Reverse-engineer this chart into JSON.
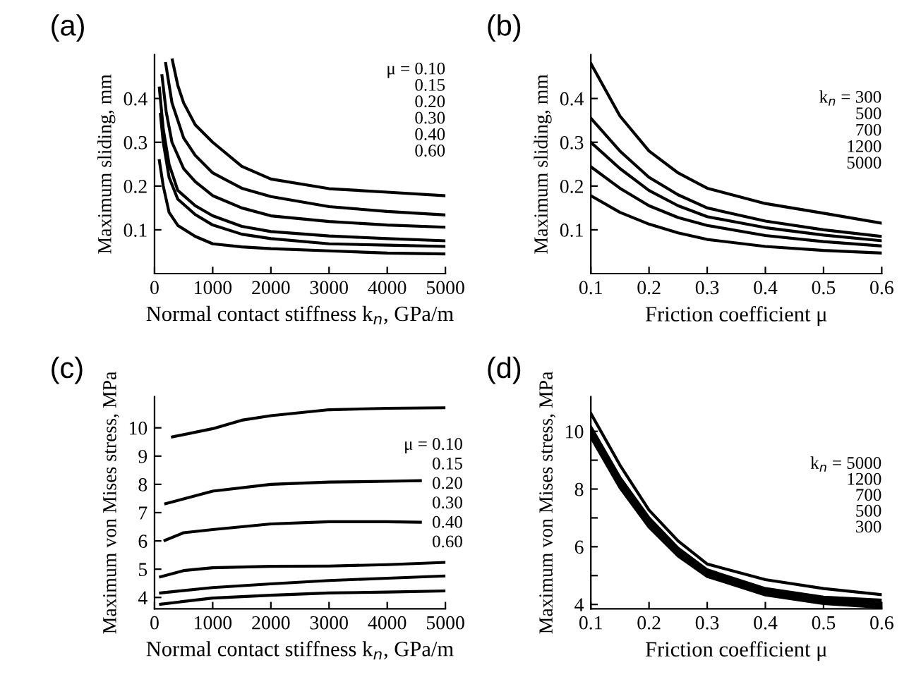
{
  "chart_data": [
    {
      "type": "line",
      "title": "(a)",
      "xlabel": "Normal contact stiffness k$_{n}$, GPa/m",
      "ylabel": "Maximum sliding, mm",
      "xlim": [
        0,
        5000
      ],
      "ylim": [
        0,
        0.5
      ],
      "xticks": [
        0,
        1000,
        2000,
        3000,
        4000,
        5000
      ],
      "yticks": [
        0.1,
        0.2,
        0.3,
        0.4
      ],
      "grid": false,
      "legend": false,
      "annotations": [
        "μ = 0.10",
        "0.15",
        "0.20",
        "0.30",
        "0.40",
        "0.60"
      ],
      "series": [
        {
          "color": "#000000",
          "x": [
            306,
            400,
            500,
            700,
            1000,
            1500,
            2000,
            3000,
            4000,
            5000
          ],
          "values": [
            0.488,
            0.43,
            0.39,
            0.34,
            0.3,
            0.245,
            0.216,
            0.194,
            0.186,
            0.178
          ]
        },
        {
          "color": "#000000",
          "x": [
            192,
            300,
            500,
            700,
            1000,
            1500,
            2000,
            3000,
            4000,
            5000
          ],
          "values": [
            0.48,
            0.39,
            0.31,
            0.27,
            0.23,
            0.195,
            0.176,
            0.153,
            0.142,
            0.134
          ]
        },
        {
          "color": "#000000",
          "x": [
            128,
            200,
            300,
            500,
            700,
            1000,
            1500,
            2000,
            3000,
            4000,
            5000
          ],
          "values": [
            0.452,
            0.37,
            0.3,
            0.24,
            0.21,
            0.178,
            0.15,
            0.132,
            0.119,
            0.111,
            0.106
          ]
        },
        {
          "color": "#000000",
          "x": [
            83,
            150,
            250,
            400,
            700,
            1000,
            1500,
            2000,
            3000,
            4000,
            5000
          ],
          "values": [
            0.424,
            0.33,
            0.25,
            0.19,
            0.155,
            0.132,
            0.108,
            0.096,
            0.086,
            0.08,
            0.075
          ]
        },
        {
          "color": "#000000",
          "x": [
            102,
            150,
            250,
            400,
            700,
            1000,
            1500,
            2000,
            3000,
            4000,
            5000
          ],
          "values": [
            0.364,
            0.3,
            0.22,
            0.17,
            0.135,
            0.111,
            0.09,
            0.08,
            0.068,
            0.065,
            0.062
          ]
        },
        {
          "color": "#000000",
          "x": [
            83,
            150,
            250,
            400,
            700,
            1000,
            1500,
            2000,
            3000,
            4000,
            5000
          ],
          "values": [
            0.258,
            0.2,
            0.14,
            0.11,
            0.085,
            0.068,
            0.061,
            0.057,
            0.052,
            0.047,
            0.045
          ]
        }
      ]
    },
    {
      "type": "line",
      "title": "(b)",
      "xlabel": "Friction coefficient μ",
      "ylabel": "Maximum sliding, mm",
      "xlim": [
        0.1,
        0.6
      ],
      "ylim": [
        0,
        0.5
      ],
      "xticks": [
        0.1,
        0.2,
        0.3,
        0.4,
        0.5,
        0.6
      ],
      "yticks": [
        0.1,
        0.2,
        0.3,
        0.4
      ],
      "grid": false,
      "legend": false,
      "annotations": [
        "k$_{n}$ = 300",
        "500",
        "700",
        "1200",
        "5000"
      ],
      "x": [
        0.1,
        0.15,
        0.2,
        0.25,
        0.3,
        0.4,
        0.5,
        0.6
      ],
      "series": [
        {
          "color": "#000000",
          "values": [
            0.48,
            0.36,
            0.28,
            0.23,
            0.195,
            0.16,
            0.138,
            0.115
          ]
        },
        {
          "color": "#000000",
          "values": [
            0.355,
            0.28,
            0.22,
            0.18,
            0.15,
            0.12,
            0.1,
            0.085
          ]
        },
        {
          "color": "#000000",
          "values": [
            0.3,
            0.24,
            0.19,
            0.155,
            0.13,
            0.105,
            0.088,
            0.075
          ]
        },
        {
          "color": "#000000",
          "values": [
            0.244,
            0.195,
            0.155,
            0.128,
            0.11,
            0.087,
            0.073,
            0.063
          ]
        },
        {
          "color": "#000000",
          "values": [
            0.178,
            0.14,
            0.113,
            0.093,
            0.078,
            0.062,
            0.053,
            0.047
          ]
        }
      ]
    },
    {
      "type": "line",
      "title": "(c)",
      "xlabel": "Normal contact stiffness k$_{n}$, GPa/m",
      "ylabel": "Maximum von Mises stress, MPa",
      "xlim": [
        0,
        5000
      ],
      "ylim": [
        3.6,
        11.1
      ],
      "xticks": [
        0,
        1000,
        2000,
        3000,
        4000,
        5000
      ],
      "yticks": [
        4,
        5,
        6,
        7,
        8,
        9,
        10
      ],
      "grid": false,
      "legend": false,
      "annotations": [
        "μ = 0.10",
        "0.15",
        "0.20",
        "0.30",
        "0.40",
        "0.60"
      ],
      "series": [
        {
          "color": "#000000",
          "x": [
            308,
            1000,
            1500,
            2000,
            3000,
            4000,
            5000
          ],
          "values": [
            9.68,
            9.97,
            10.27,
            10.43,
            10.64,
            10.69,
            10.71
          ]
        },
        {
          "color": "#000000",
          "x": [
            192,
            1000,
            2000,
            3000,
            4000,
            4570
          ],
          "values": [
            7.32,
            7.76,
            8.0,
            8.08,
            8.11,
            8.13
          ]
        },
        {
          "color": "#000000",
          "x": [
            180,
            500,
            1000,
            2000,
            3000,
            4000,
            4570
          ],
          "values": [
            6.02,
            6.29,
            6.4,
            6.6,
            6.68,
            6.68,
            6.66
          ]
        },
        {
          "color": "#000000",
          "x": [
            103,
            500,
            1000,
            2000,
            3000,
            4000,
            5000
          ],
          "values": [
            4.73,
            4.95,
            5.05,
            5.1,
            5.11,
            5.16,
            5.24
          ]
        },
        {
          "color": "#000000",
          "x": [
            103,
            1000,
            2000,
            3000,
            4000,
            5000
          ],
          "values": [
            4.16,
            4.35,
            4.48,
            4.6,
            4.68,
            4.76
          ]
        },
        {
          "color": "#000000",
          "x": [
            103,
            1000,
            2000,
            3000,
            4000,
            5000
          ],
          "values": [
            3.76,
            3.98,
            4.08,
            4.16,
            4.19,
            4.23
          ]
        }
      ]
    },
    {
      "type": "line",
      "title": "(d)",
      "xlabel": "Friction coefficient μ",
      "ylabel": "Maximum von Mises stress, MPa",
      "xlim": [
        0.1,
        0.6
      ],
      "ylim": [
        3.85,
        11.2
      ],
      "xticks": [
        0.1,
        0.2,
        0.3,
        0.4,
        0.5,
        0.6
      ],
      "yticks": [
        4,
        {
          "value": 5,
          "label": null
        },
        6,
        {
          "value": 7,
          "label": null
        },
        8,
        {
          "value": 9,
          "label": null
        },
        10
      ],
      "grid": false,
      "legend": false,
      "annotations": [
        "k$_{n}$ = 5000",
        "1200",
        "700",
        "500",
        "300"
      ],
      "x": [
        0.1,
        0.15,
        0.2,
        0.25,
        0.3,
        0.4,
        0.5,
        0.6
      ],
      "series": [
        {
          "color": "#000000",
          "values": [
            10.62,
            8.83,
            7.27,
            6.2,
            5.4,
            4.86,
            4.55,
            4.34
          ]
        },
        {
          "color": "#000000",
          "values": [
            10.15,
            8.4,
            7.0,
            5.95,
            5.2,
            4.55,
            4.25,
            4.15
          ]
        },
        {
          "color": "#000000",
          "values": [
            10.05,
            8.3,
            6.9,
            5.87,
            5.12,
            4.48,
            4.18,
            4.06
          ]
        },
        {
          "color": "#000000",
          "values": [
            9.95,
            8.2,
            6.8,
            5.78,
            5.05,
            4.4,
            4.1,
            3.98
          ]
        },
        {
          "color": "#000000",
          "values": [
            9.8,
            8.05,
            6.68,
            5.68,
            4.97,
            4.33,
            4.03,
            3.9
          ]
        }
      ]
    }
  ]
}
